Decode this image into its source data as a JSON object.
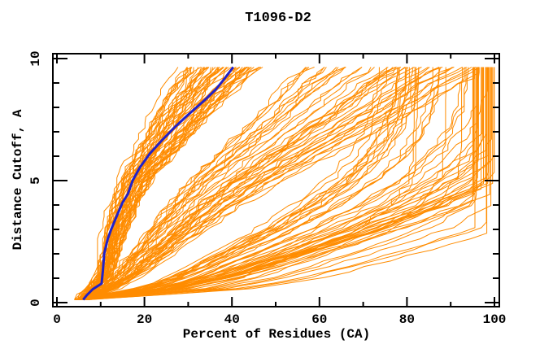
{
  "chart_data": {
    "type": "line",
    "title": "T1096-D2",
    "xlabel": "Percent of Residues (CA)",
    "ylabel": "Distance Cutoff, A",
    "xlim": [
      0,
      100
    ],
    "ylim": [
      0,
      10
    ],
    "x_ticks": [
      0,
      20,
      40,
      60,
      80,
      100
    ],
    "x_minor_step": 10,
    "y_ticks": [
      0,
      5,
      10
    ],
    "y_minor_step": 1,
    "grid": false,
    "legend": "none",
    "colors": {
      "background": "#ffffff",
      "frame": "#000000",
      "ensemble": "#ff8c00",
      "highlight": "#2222c8"
    },
    "highlight_series": {
      "name": "highlighted-model-curve",
      "points": [
        [
          6.0,
          0.12
        ],
        [
          6.8,
          0.3
        ],
        [
          8.2,
          0.55
        ],
        [
          10.2,
          0.78
        ],
        [
          10.5,
          1.3
        ],
        [
          10.8,
          2.0
        ],
        [
          11.6,
          2.6
        ],
        [
          12.4,
          3.0
        ],
        [
          13.8,
          3.6
        ],
        [
          15.0,
          4.1
        ],
        [
          16.2,
          4.45
        ],
        [
          17.3,
          5.0
        ],
        [
          19.0,
          5.55
        ],
        [
          21.2,
          6.1
        ],
        [
          24.0,
          6.65
        ],
        [
          27.0,
          7.2
        ],
        [
          30.0,
          7.7
        ],
        [
          33.8,
          8.3
        ],
        [
          36.4,
          8.75
        ],
        [
          38.4,
          9.2
        ],
        [
          40.3,
          9.65
        ]
      ]
    },
    "ensemble": {
      "name": "model-gdt-curves",
      "count": 150,
      "seed": 1096,
      "y_start": 0.12,
      "y_end": 9.65,
      "steps": 42,
      "anchors_y": [
        0.15,
        0.5,
        1,
        2,
        3,
        4,
        5,
        6,
        7,
        8,
        9,
        9.65
      ],
      "classes": [
        {
          "name": "low-accuracy-bundle",
          "weight": 0.42,
          "x": [
            5.5,
            8,
            10.5,
            12,
            13.5,
            15.5,
            18,
            22,
            26,
            30,
            34.5,
            38
          ]
        },
        {
          "name": "mid-spread",
          "weight": 0.24,
          "x": [
            6,
            11,
            15,
            21,
            27,
            33,
            40,
            48,
            56,
            64,
            71,
            77
          ]
        },
        {
          "name": "high-accuracy",
          "weight": 0.26,
          "x": [
            6,
            22,
            33,
            48,
            62,
            74,
            84,
            91,
            96,
            99,
            100,
            100
          ]
        },
        {
          "name": "fastest-band",
          "weight": 0.08,
          "x": [
            6,
            35,
            50,
            68,
            84,
            94,
            99,
            100,
            100,
            100,
            100,
            100
          ]
        }
      ],
      "scale_range": [
        0.7,
        1.32
      ],
      "cap_range": [
        95,
        100
      ],
      "start_jitter": 1.2,
      "jitter": 0.9
    }
  }
}
